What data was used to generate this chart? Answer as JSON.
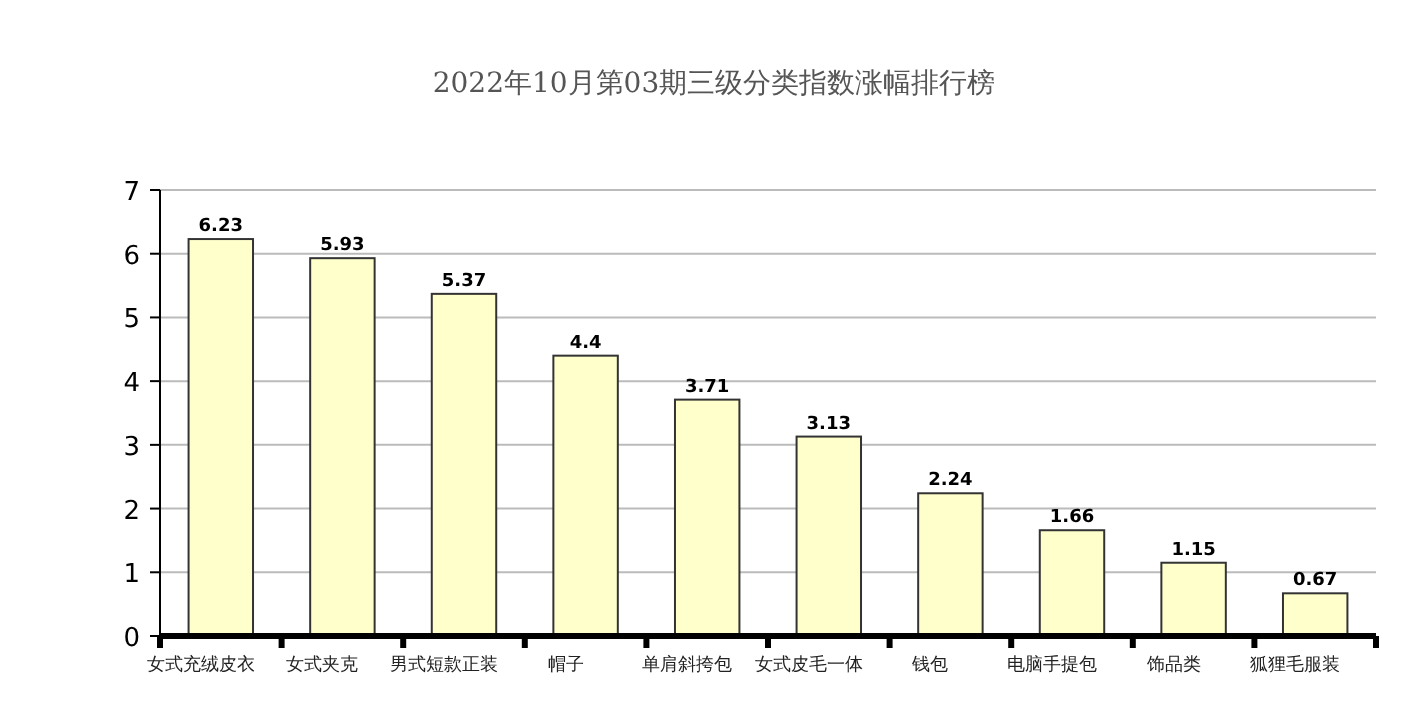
{
  "chart_data": {
    "type": "bar",
    "title": "2022年10月第03期三级分类指数涨幅排行榜",
    "categories": [
      "女式充绒皮衣",
      "女式夹克",
      "男式短款正装",
      "帽子",
      "单肩斜挎包",
      "女式皮毛一体",
      "钱包",
      "电脑手提包",
      "饰品类",
      "狐狸毛服装"
    ],
    "values": [
      6.23,
      5.93,
      5.37,
      4.4,
      3.71,
      3.13,
      2.24,
      1.66,
      1.15,
      0.67
    ],
    "color": "#ffffcc",
    "ylim": [
      0,
      7
    ],
    "yticks": [
      0,
      1,
      2,
      3,
      4,
      5,
      6,
      7
    ],
    "grid": "y",
    "data_labels": true
  }
}
